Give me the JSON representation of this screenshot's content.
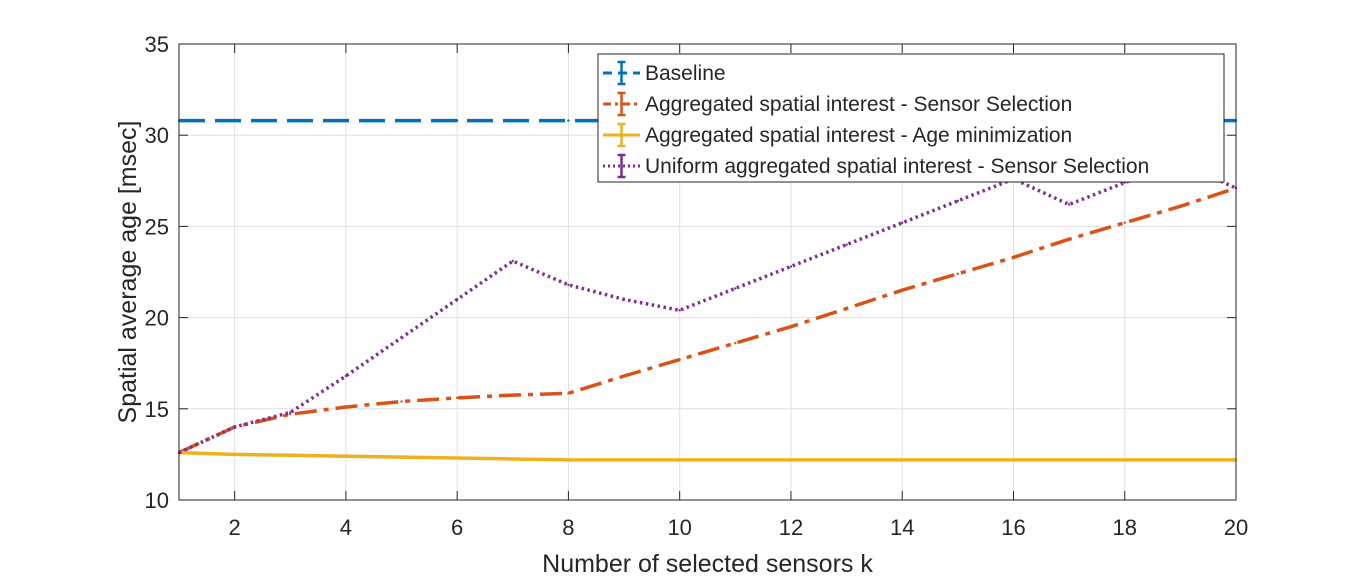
{
  "chart_data": {
    "type": "line",
    "title": "",
    "xlabel": "Number of selected sensors k",
    "ylabel": "Spatial average age [msec]",
    "xlim": [
      1,
      20
    ],
    "ylim": [
      10,
      35
    ],
    "x_ticks": [
      2,
      4,
      6,
      8,
      10,
      12,
      14,
      16,
      18,
      20
    ],
    "y_ticks": [
      10,
      15,
      20,
      25,
      30,
      35
    ],
    "grid": true,
    "legend_position": "top-right",
    "x": [
      1,
      2,
      3,
      4,
      5,
      6,
      7,
      8,
      9,
      10,
      11,
      12,
      13,
      14,
      15,
      16,
      17,
      18,
      19,
      20
    ],
    "series": [
      {
        "name": "Baseline",
        "color": "#0072BD",
        "style": "dashed",
        "values": [
          30.8,
          30.8,
          30.8,
          30.8,
          30.8,
          30.8,
          30.8,
          30.8,
          30.8,
          30.8,
          30.8,
          30.8,
          30.8,
          30.8,
          30.8,
          30.8,
          30.8,
          30.8,
          30.8,
          30.8
        ]
      },
      {
        "name": "Aggregated spatial interest - Sensor Selection",
        "color": "#D95319",
        "style": "dashdot",
        "values": [
          12.6,
          14.0,
          14.7,
          15.1,
          15.4,
          15.6,
          15.75,
          15.85,
          16.8,
          17.7,
          18.6,
          19.5,
          20.5,
          21.5,
          22.4,
          23.3,
          24.3,
          25.2,
          26.1,
          27.1
        ]
      },
      {
        "name": "Aggregated spatial interest - Age minimization",
        "color": "#EDB120",
        "style": "solid",
        "values": [
          12.6,
          12.5,
          12.45,
          12.4,
          12.35,
          12.3,
          12.25,
          12.2,
          12.2,
          12.2,
          12.2,
          12.2,
          12.2,
          12.2,
          12.2,
          12.2,
          12.2,
          12.2,
          12.2,
          12.2
        ]
      },
      {
        "name": "Uniform aggregated spatial interest - Sensor Selection",
        "color": "#7E2F8E",
        "style": "dotted",
        "values": [
          12.6,
          14.0,
          14.8,
          16.8,
          18.9,
          21.0,
          23.1,
          21.8,
          21.0,
          20.4,
          21.6,
          22.8,
          24.0,
          25.2,
          26.4,
          27.6,
          26.2,
          27.4,
          28.5,
          27.1
        ]
      }
    ]
  }
}
